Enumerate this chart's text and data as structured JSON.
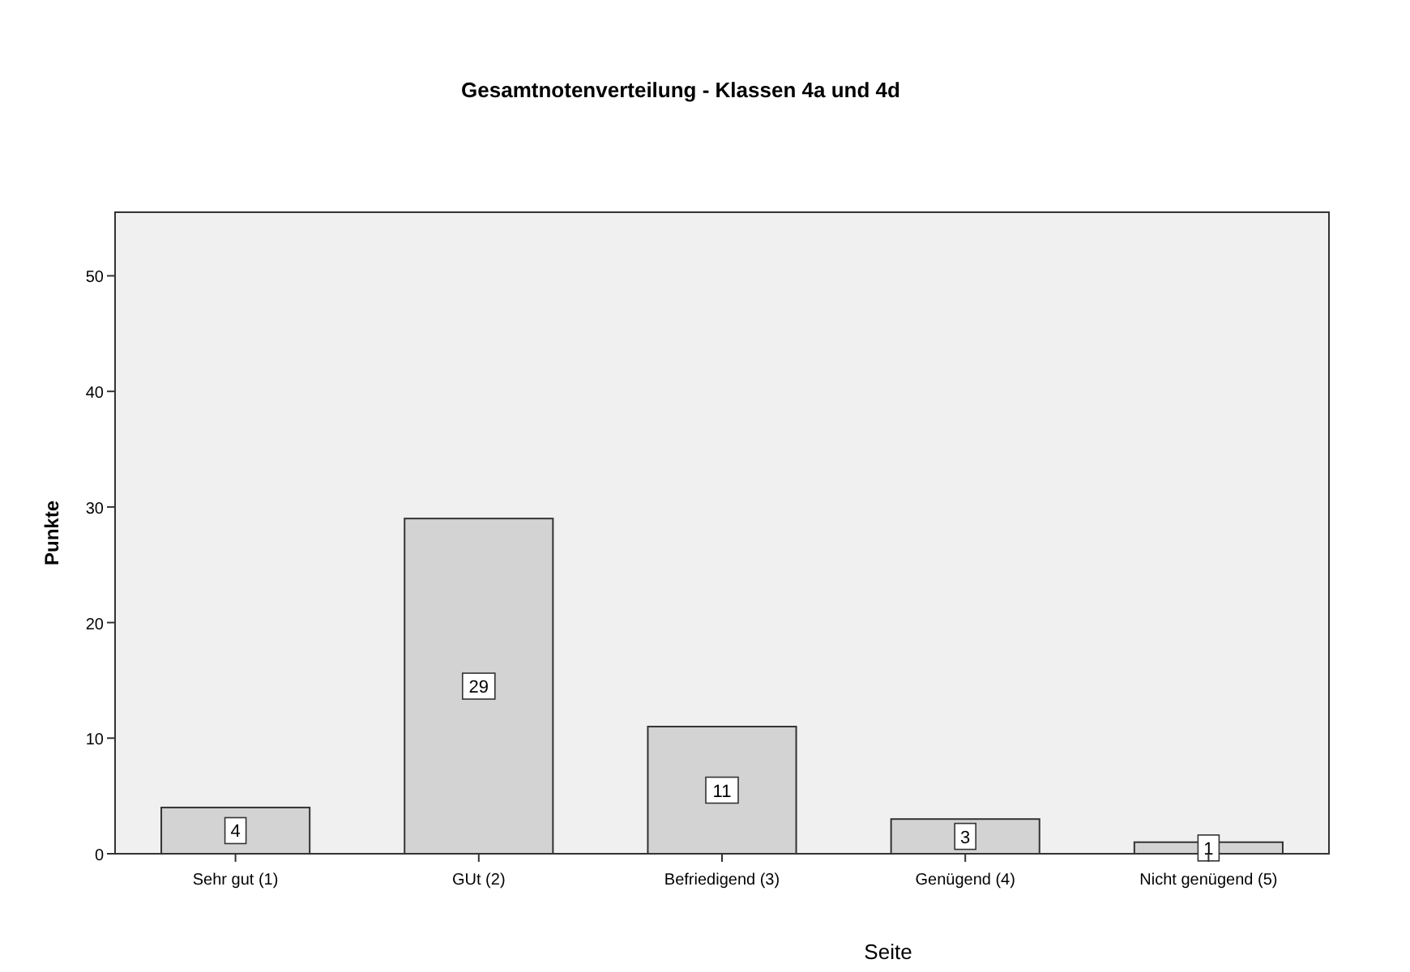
{
  "chart_data": {
    "type": "bar",
    "title": "Gesamtnotenverteilung - Klassen 4a und 4d",
    "xlabel": "Seite",
    "ylabel": "Punkte",
    "categories": [
      "Sehr gut (1)",
      "GUt (2)",
      "Befriedigend (3)",
      "Genügend (4)",
      "Nicht genügend (5)"
    ],
    "values": [
      4,
      29,
      11,
      3,
      1
    ],
    "color": "#d3d3d3",
    "ylim": [
      0,
      55.5
    ],
    "yticks": [
      0,
      10,
      20,
      30,
      40,
      50
    ],
    "grid": false,
    "data_labels": true
  }
}
